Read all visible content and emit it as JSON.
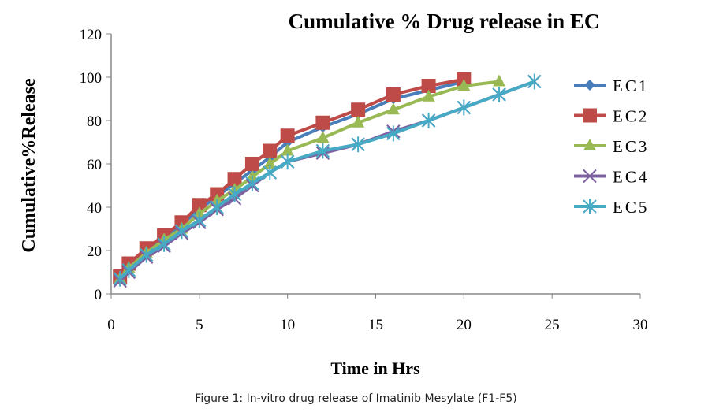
{
  "chart_data": {
    "type": "line",
    "title": "Cumulative % Drug release in  EC",
    "xlabel": "Time in Hrs",
    "ylabel": "Cumulative%Release",
    "xlim": [
      0,
      30
    ],
    "ylim": [
      0,
      120
    ],
    "xticks": [
      0,
      5,
      10,
      15,
      20,
      25,
      30
    ],
    "yticks": [
      0,
      20,
      40,
      60,
      80,
      100,
      120
    ],
    "grid": false,
    "legend": "right",
    "series": [
      {
        "name": "EC1",
        "color": "#4a7ebb",
        "marker": "diamond",
        "x": [
          0.5,
          1,
          2,
          3,
          4,
          5,
          6,
          7,
          8,
          9,
          10,
          12,
          14,
          16,
          18,
          20
        ],
        "y": [
          7,
          13,
          20,
          26,
          32,
          39,
          45,
          51,
          57,
          63,
          70,
          77,
          83,
          90,
          94,
          98
        ]
      },
      {
        "name": "EC2",
        "color": "#be4b48",
        "marker": "square",
        "x": [
          0.5,
          1,
          2,
          3,
          4,
          5,
          6,
          7,
          8,
          9,
          10,
          12,
          14,
          16,
          18,
          20
        ],
        "y": [
          8,
          14,
          21,
          27,
          33,
          41,
          46,
          53,
          60,
          66,
          73,
          79,
          85,
          92,
          96,
          99
        ]
      },
      {
        "name": "EC3",
        "color": "#98b954",
        "marker": "triangle",
        "x": [
          0.5,
          1,
          2,
          3,
          4,
          5,
          6,
          7,
          8,
          9,
          10,
          12,
          14,
          16,
          18,
          20,
          22
        ],
        "y": [
          7,
          12,
          19,
          25,
          30,
          37,
          43,
          48,
          54,
          60,
          66,
          72,
          79,
          85,
          91,
          96,
          98
        ]
      },
      {
        "name": "EC4",
        "color": "#7d60a0",
        "marker": "x",
        "x": [
          0.5,
          1,
          2,
          3,
          4,
          5,
          6,
          7,
          8,
          9,
          10,
          12,
          14,
          16,
          18,
          20,
          22,
          24
        ],
        "y": [
          6,
          10,
          17,
          22,
          28,
          33,
          39,
          44,
          50,
          56,
          61,
          65,
          69,
          75,
          80,
          86,
          92,
          98
        ]
      },
      {
        "name": "EC5",
        "color": "#46aac5",
        "marker": "star",
        "x": [
          0.5,
          1,
          2,
          3,
          4,
          5,
          6,
          7,
          8,
          9,
          10,
          12,
          14,
          16,
          18,
          20,
          22,
          24
        ],
        "y": [
          7,
          11,
          18,
          23,
          29,
          34,
          40,
          46,
          51,
          56,
          61,
          66,
          69,
          74,
          80,
          86,
          92,
          98
        ]
      }
    ]
  },
  "caption": "Figure 1: In-vitro drug release of Imatinib Mesylate (F1-F5)"
}
